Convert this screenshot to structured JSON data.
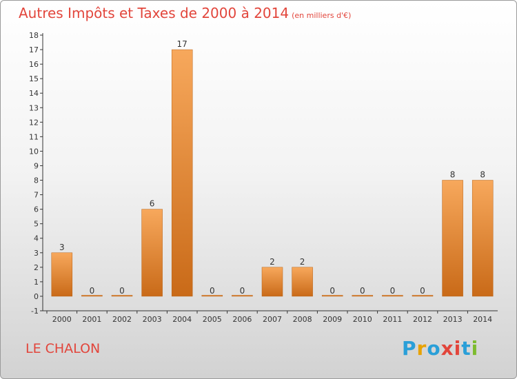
{
  "header": {
    "title": "Autres Impôts et Taxes de 2000 à 2014",
    "subtitle": "(en milliers d'€)"
  },
  "footer": {
    "place_name": "LE CHALON",
    "brand_letters": [
      "P",
      "r",
      "o",
      "x",
      "i",
      "t",
      "i"
    ],
    "brand_colors": [
      "#2a9fd8",
      "#e8a200",
      "#2a9fd8",
      "#e2453b",
      "#e2453b",
      "#2a9fd8",
      "#7dbb2e"
    ]
  },
  "colors": {
    "bar_top": "#f7a85c",
    "bar_bottom": "#c96a18",
    "axis": "#333333",
    "text": "#333333"
  },
  "chart_data": {
    "type": "bar",
    "categories": [
      "2000",
      "2001",
      "2002",
      "2003",
      "2004",
      "2005",
      "2006",
      "2007",
      "2008",
      "2009",
      "2010",
      "2011",
      "2012",
      "2013",
      "2014"
    ],
    "values": [
      3,
      0,
      0,
      6,
      17,
      0,
      0,
      2,
      2,
      0,
      0,
      0,
      0,
      8,
      8
    ],
    "data_labels": [
      "3",
      "0",
      "0",
      "6",
      "17",
      "0",
      "0",
      "2",
      "2",
      "0",
      "0",
      "0",
      "0",
      "8",
      "8"
    ],
    "title": "Autres Impôts et Taxes de 2000 à 2014",
    "xlabel": "",
    "ylabel": "",
    "ylim": [
      -1,
      18
    ],
    "yticks": [
      "-1",
      "0",
      "1",
      "2",
      "3",
      "4",
      "5",
      "6",
      "7",
      "8",
      "9",
      "10",
      "11",
      "12",
      "13",
      "14",
      "15",
      "16",
      "17",
      "18"
    ],
    "grid": false,
    "legend": "none"
  }
}
